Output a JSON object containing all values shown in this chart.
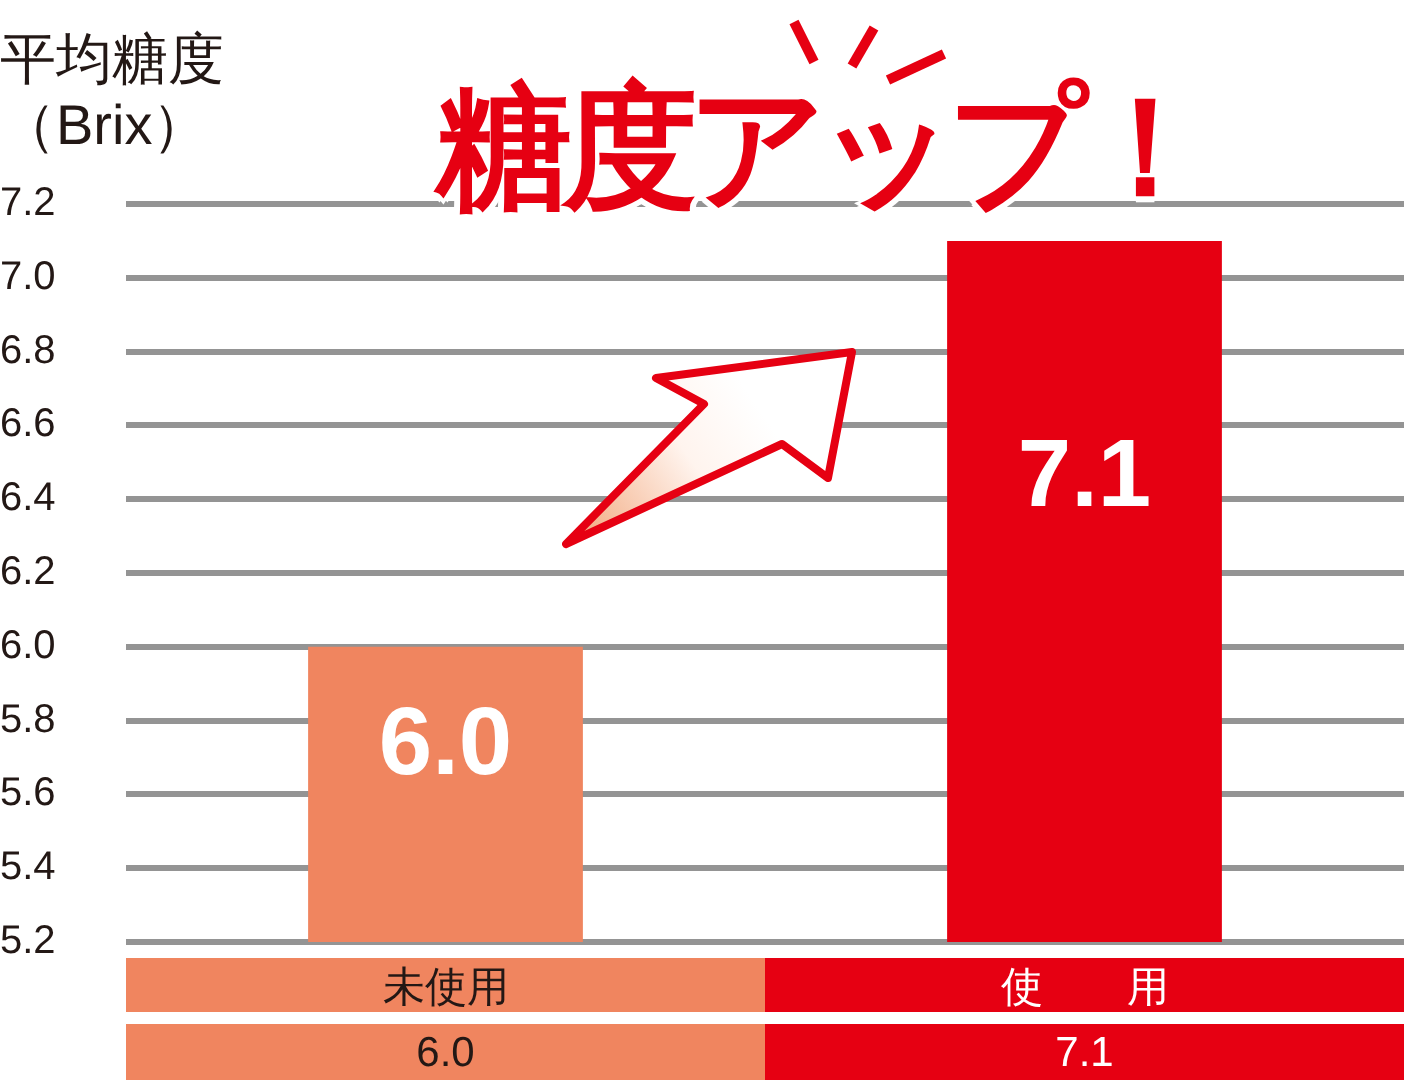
{
  "chart_data": {
    "type": "bar",
    "title": "糖度アップ！",
    "ylabel": "平均糖度（Brix）",
    "categories": [
      "未使用",
      "使　　用"
    ],
    "values": [
      6.0,
      7.1
    ],
    "colors": [
      "#f0855f",
      "#e60012"
    ],
    "value_labels": [
      "6.0",
      "7.1"
    ],
    "ylim": [
      5.2,
      7.2
    ],
    "yticks": [
      5.2,
      5.4,
      5.6,
      5.8,
      {
        "value": 6.0,
        "label": "6.0"
      },
      6.2,
      6.4,
      6.6,
      6.8,
      {
        "value": 7.0,
        "label": "7.0"
      },
      7.2
    ],
    "grid": "y"
  }
}
